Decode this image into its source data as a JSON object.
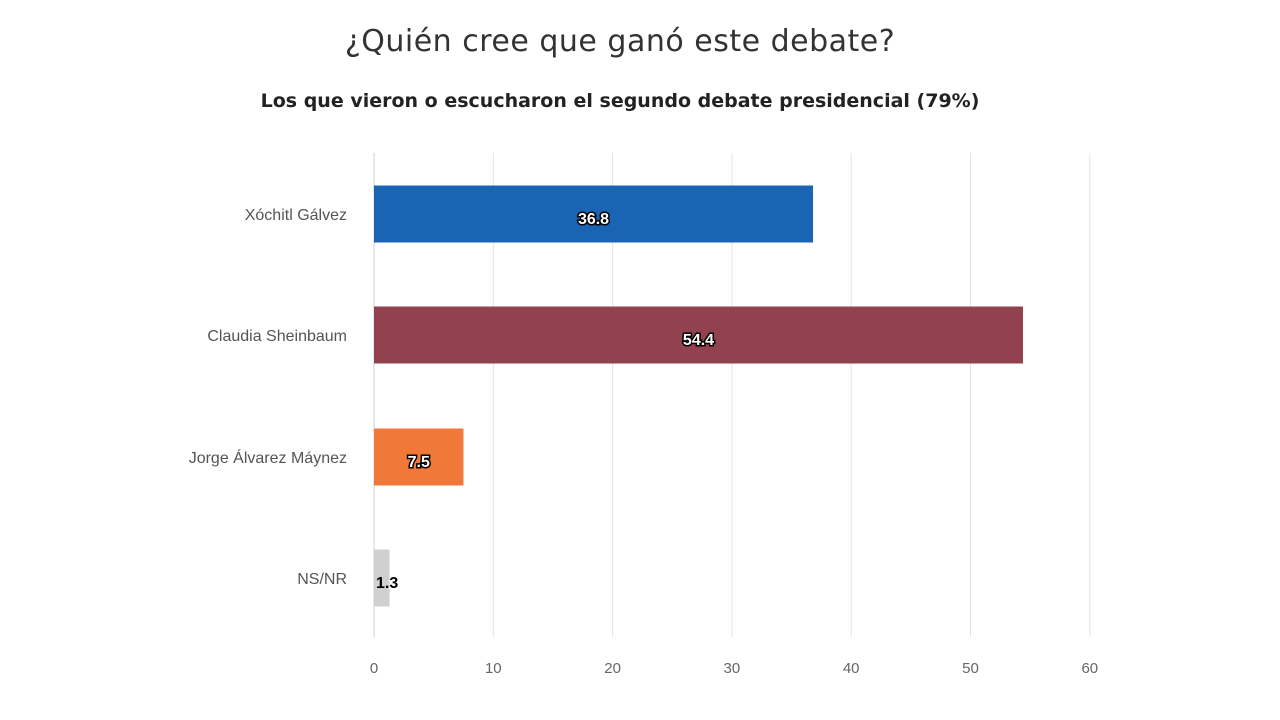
{
  "chart_data": {
    "type": "bar",
    "orientation": "horizontal",
    "title": "¿Quién cree que ganó este debate?",
    "subtitle": "Los que vieron o escucharon el segundo debate presidencial (79%)",
    "categories": [
      "Xóchitl Gálvez",
      "Claudia Sheinbaum",
      "Jorge Álvarez Máynez",
      "NS/NR"
    ],
    "values": [
      36.8,
      54.4,
      7.5,
      1.3
    ],
    "value_labels": [
      "36.8",
      "54.4",
      "7.5",
      "1.3"
    ],
    "colors": [
      "#1a64b4",
      "#92414f",
      "#f07838",
      "#d0d0d0"
    ],
    "xlim": [
      0,
      60
    ],
    "xticks": [
      0,
      10,
      20,
      30,
      40,
      50,
      60
    ],
    "xlabel": "",
    "ylabel": "",
    "grid": true,
    "legend": "none"
  }
}
